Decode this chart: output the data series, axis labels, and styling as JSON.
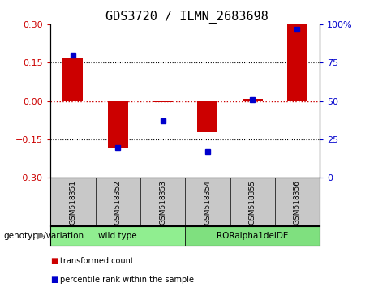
{
  "title": "GDS3720 / ILMN_2683698",
  "samples": [
    "GSM518351",
    "GSM518352",
    "GSM518353",
    "GSM518354",
    "GSM518355",
    "GSM518356"
  ],
  "red_bars": [
    0.17,
    -0.185,
    -0.005,
    -0.12,
    0.01,
    0.3
  ],
  "blue_points": [
    80,
    20,
    37,
    17,
    51,
    97
  ],
  "ylim_left": [
    -0.3,
    0.3
  ],
  "ylim_right": [
    0,
    100
  ],
  "yticks_left": [
    -0.3,
    -0.15,
    0,
    0.15,
    0.3
  ],
  "yticks_right": [
    0,
    25,
    50,
    75,
    100
  ],
  "groups": [
    {
      "label": "wild type",
      "indices": [
        0,
        1,
        2
      ],
      "color": "#90EE90"
    },
    {
      "label": "RORalpha1delDE",
      "indices": [
        3,
        4,
        5
      ],
      "color": "#7FE07F"
    }
  ],
  "group_label": "genotype/variation",
  "legend_red": "transformed count",
  "legend_blue": "percentile rank within the sample",
  "bar_color": "#CC0000",
  "point_color": "#0000CC",
  "zero_line_color": "#CC0000",
  "label_bg_color": "#C8C8C8",
  "background_color": "#FFFFFF"
}
